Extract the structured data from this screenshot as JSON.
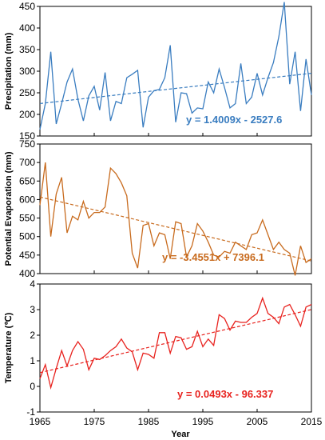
{
  "chart_data": [
    {
      "type": "line",
      "ylabel": "Precipitation (mm)",
      "ylim": [
        150,
        450
      ],
      "yticks": [
        "150",
        "200",
        "250",
        "300",
        "350",
        "400",
        "450"
      ],
      "color": "#3A7DC0",
      "equation": "y = 1.4009x - 2527.6",
      "trend": {
        "slope": 1.4009,
        "intercept": -2527.6
      },
      "x": [
        1965,
        1966,
        1967,
        1968,
        1969,
        1970,
        1971,
        1972,
        1973,
        1974,
        1975,
        1976,
        1977,
        1978,
        1979,
        1980,
        1981,
        1982,
        1983,
        1984,
        1985,
        1986,
        1987,
        1988,
        1989,
        1990,
        1991,
        1992,
        1993,
        1994,
        1995,
        1996,
        1997,
        1998,
        1999,
        2000,
        2001,
        2002,
        2003,
        2004,
        2005,
        2006,
        2007,
        2008,
        2009,
        2010,
        2011,
        2012,
        2013,
        2014,
        2015
      ],
      "values": [
        165,
        225,
        345,
        178,
        225,
        275,
        305,
        235,
        185,
        243,
        265,
        210,
        297,
        185,
        230,
        225,
        285,
        293,
        302,
        170,
        240,
        255,
        258,
        285,
        360,
        182,
        250,
        248,
        203,
        215,
        213,
        275,
        250,
        305,
        262,
        215,
        225,
        318,
        225,
        240,
        295,
        245,
        285,
        320,
        380,
        460,
        270,
        345,
        208,
        328,
        245
      ]
    },
    {
      "type": "line",
      "ylabel": "Potential Evaporation (mm)",
      "ylim": [
        400,
        750
      ],
      "yticks": [
        "400",
        "450",
        "500",
        "550",
        "600",
        "650",
        "700",
        "750"
      ],
      "color": "#C86B1E",
      "equation": "y = -3.4551x + 7396.1",
      "trend": {
        "slope": -3.4551,
        "intercept": 7396.1
      },
      "x": [
        1965,
        1966,
        1967,
        1968,
        1969,
        1970,
        1971,
        1972,
        1973,
        1974,
        1975,
        1976,
        1977,
        1978,
        1979,
        1980,
        1981,
        1982,
        1983,
        1984,
        1985,
        1986,
        1987,
        1988,
        1989,
        1990,
        1991,
        1992,
        1993,
        1994,
        1995,
        1996,
        1997,
        1998,
        1999,
        2000,
        2001,
        2002,
        2003,
        2004,
        2005,
        2006,
        2007,
        2008,
        2009,
        2010,
        2011,
        2012,
        2013,
        2014,
        2015
      ],
      "values": [
        585,
        700,
        500,
        615,
        660,
        510,
        555,
        545,
        595,
        550,
        565,
        565,
        580,
        685,
        670,
        645,
        610,
        455,
        415,
        530,
        535,
        475,
        510,
        505,
        440,
        540,
        535,
        445,
        475,
        535,
        515,
        485,
        450,
        445,
        460,
        455,
        485,
        475,
        465,
        505,
        510,
        545,
        505,
        465,
        485,
        465,
        455,
        395,
        475,
        430,
        440
      ]
    },
    {
      "type": "line",
      "ylabel": "Temperature (℃)",
      "ylim": [
        -1,
        4
      ],
      "yticks": [
        "-1",
        "0",
        "1",
        "2",
        "3",
        "4"
      ],
      "color": "#E8231F",
      "equation": "y = 0.0493x - 96.337",
      "trend": {
        "slope": 0.0493,
        "intercept": -96.337
      },
      "x": [
        1965,
        1966,
        1967,
        1968,
        1969,
        1970,
        1971,
        1972,
        1973,
        1974,
        1975,
        1976,
        1977,
        1978,
        1979,
        1980,
        1981,
        1982,
        1983,
        1984,
        1985,
        1986,
        1987,
        1988,
        1989,
        1990,
        1991,
        1992,
        1993,
        1994,
        1995,
        1996,
        1997,
        1998,
        1999,
        2000,
        2001,
        2002,
        2003,
        2004,
        2005,
        2006,
        2007,
        2008,
        2009,
        2010,
        2011,
        2012,
        2013,
        2014,
        2015
      ],
      "values": [
        0.3,
        0.85,
        -0.05,
        0.7,
        1.4,
        0.8,
        1.4,
        1.75,
        1.45,
        0.65,
        1.1,
        1.05,
        1.2,
        1.4,
        1.55,
        1.85,
        1.5,
        1.35,
        0.65,
        1.3,
        1.25,
        1.1,
        2.1,
        2.1,
        1.3,
        1.95,
        1.9,
        1.45,
        1.55,
        2.15,
        1.55,
        1.85,
        1.6,
        2.8,
        2.65,
        2.2,
        2.55,
        2.5,
        2.5,
        2.7,
        2.85,
        3.45,
        2.85,
        2.7,
        2.45,
        3.1,
        3.2,
        2.8,
        2.35,
        3.1,
        3.2
      ]
    }
  ],
  "xaxis": {
    "label": "Year",
    "xlim": [
      1965,
      2015
    ],
    "ticks": [
      "1965",
      "1975",
      "1985",
      "1995",
      "2005",
      "2015"
    ]
  }
}
